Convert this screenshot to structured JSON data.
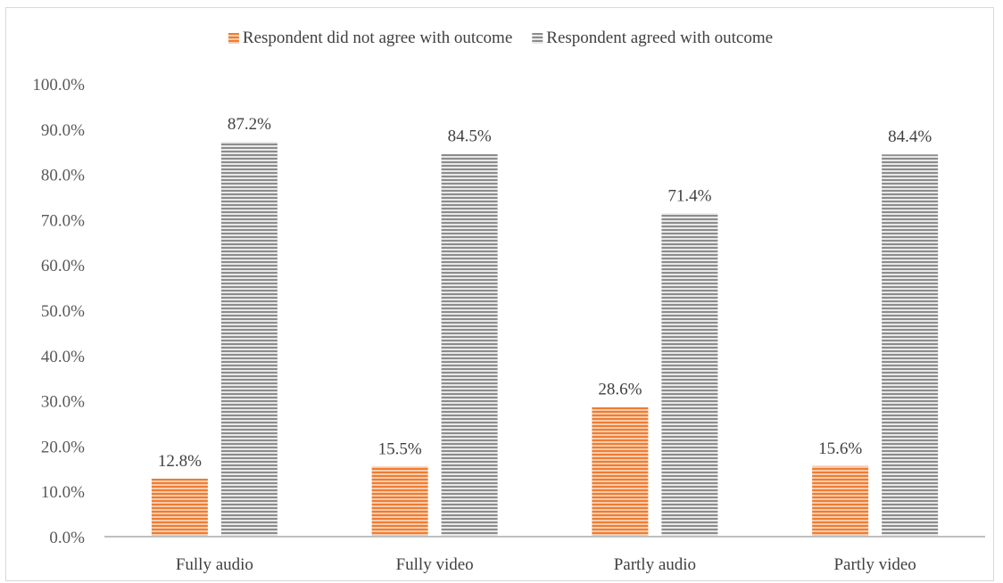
{
  "chart_data": {
    "type": "bar",
    "categories": [
      "Fully audio",
      "Fully video",
      "Partly audio",
      "Partly video"
    ],
    "series": [
      {
        "name": "Respondent did not agree with outcome",
        "values": [
          12.8,
          15.5,
          28.6,
          15.6
        ],
        "labels": [
          "12.8%",
          "15.5%",
          "28.6%",
          "15.6%"
        ],
        "color": "#ed7d31",
        "stripe_color": "#f8cbad"
      },
      {
        "name": "Respondent agreed with outcome",
        "values": [
          87.2,
          84.5,
          71.4,
          84.4
        ],
        "labels": [
          "87.2%",
          "84.5%",
          "71.4%",
          "84.4%"
        ],
        "color": "#8c8c8c",
        "stripe_color": "#e8e8e8"
      }
    ],
    "yticks": [
      "0.0%",
      "10.0%",
      "20.0%",
      "30.0%",
      "40.0%",
      "50.0%",
      "60.0%",
      "70.0%",
      "80.0%",
      "90.0%",
      "100.0%"
    ],
    "ylim": [
      0,
      100
    ],
    "grid": false,
    "legend_position": "top-center",
    "title": "",
    "xlabel": "",
    "ylabel": ""
  }
}
